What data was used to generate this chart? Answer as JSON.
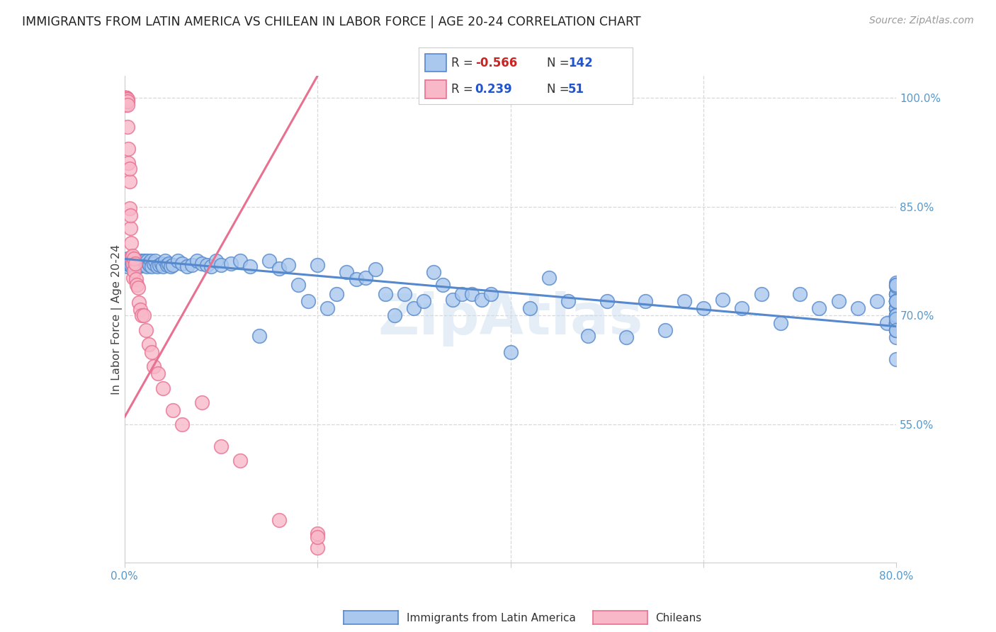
{
  "title": "IMMIGRANTS FROM LATIN AMERICA VS CHILEAN IN LABOR FORCE | AGE 20-24 CORRELATION CHART",
  "source": "Source: ZipAtlas.com",
  "ylabel": "In Labor Force | Age 20-24",
  "x_min": 0.0,
  "x_max": 0.8,
  "y_min": 0.36,
  "y_max": 1.03,
  "y_ticks_right": [
    0.55,
    0.7,
    0.85,
    1.0
  ],
  "y_tick_labels_right": [
    "55.0%",
    "70.0%",
    "85.0%",
    "100.0%"
  ],
  "grid_color": "#d8d8d8",
  "background_color": "#ffffff",
  "blue_color": "#5588cc",
  "pink_color": "#e87090",
  "blue_fill": "#aac8ee",
  "pink_fill": "#f8b8c8",
  "legend_R_blue": "-0.566",
  "legend_N_blue": "142",
  "legend_R_pink": "0.239",
  "legend_N_pink": "51",
  "legend_label_blue": "Immigrants from Latin America",
  "legend_label_pink": "Chileans",
  "watermark": "ZipAtlas",
  "blue_trend_x": [
    0.0,
    0.8
  ],
  "blue_trend_y": [
    0.778,
    0.685
  ],
  "pink_trend_x": [
    0.0,
    0.2
  ],
  "pink_trend_y": [
    0.56,
    1.03
  ],
  "blue_points_x": [
    0.002,
    0.003,
    0.003,
    0.004,
    0.005,
    0.005,
    0.006,
    0.006,
    0.007,
    0.007,
    0.008,
    0.008,
    0.009,
    0.009,
    0.01,
    0.01,
    0.011,
    0.011,
    0.012,
    0.013,
    0.014,
    0.015,
    0.015,
    0.016,
    0.017,
    0.018,
    0.019,
    0.02,
    0.021,
    0.022,
    0.023,
    0.024,
    0.025,
    0.026,
    0.027,
    0.028,
    0.03,
    0.032,
    0.034,
    0.036,
    0.038,
    0.04,
    0.042,
    0.044,
    0.046,
    0.048,
    0.05,
    0.055,
    0.06,
    0.065,
    0.07,
    0.075,
    0.08,
    0.085,
    0.09,
    0.095,
    0.1,
    0.11,
    0.12,
    0.13,
    0.14,
    0.15,
    0.16,
    0.17,
    0.18,
    0.19,
    0.2,
    0.21,
    0.22,
    0.23,
    0.24,
    0.25,
    0.26,
    0.27,
    0.28,
    0.29,
    0.3,
    0.31,
    0.32,
    0.33,
    0.34,
    0.35,
    0.36,
    0.37,
    0.38,
    0.4,
    0.42,
    0.44,
    0.46,
    0.48,
    0.5,
    0.52,
    0.54,
    0.56,
    0.58,
    0.6,
    0.62,
    0.64,
    0.66,
    0.68,
    0.7,
    0.72,
    0.74,
    0.76,
    0.78,
    0.79,
    0.8,
    0.8,
    0.8,
    0.8,
    0.8,
    0.8,
    0.8,
    0.8,
    0.8,
    0.8,
    0.8,
    0.8,
    0.8,
    0.8,
    0.8,
    0.8,
    0.8,
    0.8,
    0.8,
    0.8,
    0.8,
    0.8,
    0.8,
    0.8,
    0.8,
    0.8,
    0.8,
    0.8,
    0.8,
    0.8,
    0.8,
    0.8,
    0.8,
    0.8,
    0.8,
    0.8
  ],
  "blue_points_y": [
    0.775,
    0.768,
    0.778,
    0.772,
    0.775,
    0.77,
    0.772,
    0.776,
    0.77,
    0.775,
    0.772,
    0.778,
    0.77,
    0.775,
    0.772,
    0.768,
    0.775,
    0.77,
    0.772,
    0.775,
    0.77,
    0.775,
    0.768,
    0.772,
    0.77,
    0.775,
    0.77,
    0.772,
    0.775,
    0.77,
    0.768,
    0.775,
    0.772,
    0.77,
    0.775,
    0.768,
    0.772,
    0.775,
    0.768,
    0.77,
    0.772,
    0.768,
    0.775,
    0.77,
    0.772,
    0.768,
    0.77,
    0.775,
    0.772,
    0.768,
    0.77,
    0.775,
    0.772,
    0.77,
    0.768,
    0.775,
    0.77,
    0.772,
    0.775,
    0.768,
    0.672,
    0.775,
    0.765,
    0.77,
    0.742,
    0.72,
    0.77,
    0.71,
    0.73,
    0.76,
    0.75,
    0.752,
    0.764,
    0.73,
    0.7,
    0.73,
    0.71,
    0.72,
    0.76,
    0.742,
    0.722,
    0.73,
    0.73,
    0.722,
    0.73,
    0.65,
    0.71,
    0.752,
    0.72,
    0.672,
    0.72,
    0.67,
    0.72,
    0.68,
    0.72,
    0.71,
    0.722,
    0.71,
    0.73,
    0.69,
    0.73,
    0.71,
    0.72,
    0.71,
    0.72,
    0.69,
    0.71,
    0.72,
    0.71,
    0.7,
    0.72,
    0.71,
    0.69,
    0.72,
    0.73,
    0.7,
    0.71,
    0.7,
    0.73,
    0.73,
    0.72,
    0.745,
    0.74,
    0.69,
    0.67,
    0.69,
    0.68,
    0.69,
    0.69,
    0.69,
    0.68,
    0.64,
    0.7,
    0.72,
    0.742,
    0.7,
    0.72,
    0.7,
    0.72,
    0.695,
    0.68,
    0.742
  ],
  "pink_points_x": [
    0.001,
    0.001,
    0.001,
    0.001,
    0.001,
    0.002,
    0.002,
    0.002,
    0.002,
    0.002,
    0.003,
    0.003,
    0.003,
    0.003,
    0.004,
    0.004,
    0.005,
    0.005,
    0.005,
    0.006,
    0.006,
    0.007,
    0.007,
    0.008,
    0.008,
    0.009,
    0.01,
    0.01,
    0.011,
    0.012,
    0.013,
    0.014,
    0.015,
    0.016,
    0.018,
    0.02,
    0.022,
    0.025,
    0.028,
    0.03,
    0.035,
    0.04,
    0.05,
    0.06,
    0.08,
    0.1,
    0.12,
    0.16,
    0.2,
    0.2,
    0.2
  ],
  "pink_points_y": [
    1.0,
    1.0,
    1.0,
    1.0,
    0.99,
    1.0,
    1.0,
    1.0,
    0.998,
    0.995,
    0.998,
    0.995,
    0.99,
    0.96,
    0.93,
    0.91,
    0.885,
    0.902,
    0.848,
    0.82,
    0.838,
    0.8,
    0.78,
    0.782,
    0.772,
    0.752,
    0.762,
    0.778,
    0.772,
    0.75,
    0.742,
    0.738,
    0.718,
    0.708,
    0.7,
    0.7,
    0.68,
    0.66,
    0.65,
    0.63,
    0.62,
    0.6,
    0.57,
    0.55,
    0.58,
    0.52,
    0.5,
    0.418,
    0.38,
    0.4,
    0.395
  ]
}
